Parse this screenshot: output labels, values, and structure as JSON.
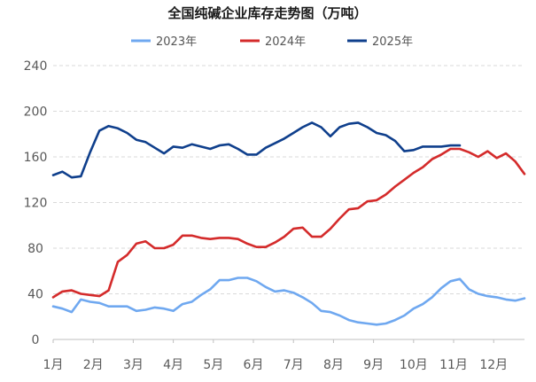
{
  "chart_data": {
    "type": "line",
    "title": "全国纯碱企业库存走势图（万吨）",
    "xlabel": "",
    "ylabel": "",
    "ylim": [
      0,
      240
    ],
    "yticks": [
      0,
      40,
      80,
      120,
      160,
      200,
      240
    ],
    "categories": [
      "1月",
      "2月",
      "3月",
      "4月",
      "5月",
      "6月",
      "7月",
      "8月",
      "9月",
      "10月",
      "11月",
      "12月"
    ],
    "grid": true,
    "legend_position": "top",
    "x_unit": "week",
    "series": [
      {
        "name": "2023年",
        "color": "#6fa8f0",
        "x": [
          0,
          1,
          2,
          3,
          4,
          5,
          6,
          7,
          8,
          9,
          10,
          11,
          12,
          13,
          14,
          15,
          16,
          17,
          18,
          19,
          20,
          21,
          22,
          23,
          24,
          25,
          26,
          27,
          28,
          29,
          30,
          31,
          32,
          33,
          34,
          35,
          36,
          37,
          38,
          39,
          40,
          41,
          42,
          43,
          44,
          45,
          46,
          47,
          48,
          49,
          50,
          51
        ],
        "values": [
          29,
          27,
          24,
          35,
          33,
          32,
          29,
          29,
          29,
          25,
          26,
          28,
          27,
          25,
          31,
          33,
          39,
          44,
          52,
          52,
          54,
          54,
          51,
          46,
          42,
          43,
          41,
          37,
          32,
          25,
          24,
          21,
          17,
          15,
          14,
          13,
          14,
          17,
          21,
          27,
          31,
          37,
          45,
          51,
          53,
          44,
          40,
          38,
          37,
          35,
          34,
          36
        ]
      },
      {
        "name": "2024年",
        "color": "#d42b2b",
        "x": [
          0,
          1,
          2,
          3,
          4,
          5,
          6,
          7,
          8,
          9,
          10,
          11,
          12,
          13,
          14,
          15,
          16,
          17,
          18,
          19,
          20,
          21,
          22,
          23,
          24,
          25,
          26,
          27,
          28,
          29,
          30,
          31,
          32,
          33,
          34,
          35,
          36,
          37,
          38,
          39,
          40,
          41,
          42,
          43,
          44,
          45,
          46,
          47,
          48,
          49,
          50,
          51
        ],
        "values": [
          37,
          42,
          43,
          40,
          39,
          38,
          43,
          68,
          74,
          84,
          86,
          80,
          80,
          83,
          91,
          91,
          89,
          88,
          89,
          89,
          88,
          84,
          81,
          81,
          85,
          90,
          97,
          98,
          90,
          90,
          97,
          106,
          114,
          115,
          121,
          122,
          127,
          134,
          140,
          146,
          151,
          158,
          162,
          167,
          167,
          164,
          160,
          165,
          159,
          163,
          156,
          145
        ]
      },
      {
        "name": "2025年",
        "color": "#0f3f8c",
        "x": [
          0,
          1,
          2,
          3,
          4,
          5,
          6,
          7,
          8,
          9,
          10,
          11,
          12,
          13,
          14,
          15,
          16,
          17,
          18,
          19,
          20,
          21,
          22,
          23,
          24,
          25,
          26,
          27,
          28,
          29,
          30,
          31,
          32,
          33,
          34,
          35,
          36,
          37,
          38,
          39,
          40,
          41,
          42,
          43,
          44
        ],
        "values": [
          144,
          147,
          142,
          143,
          164,
          183,
          187,
          185,
          181,
          175,
          173,
          168,
          163,
          169,
          168,
          171,
          169,
          167,
          170,
          171,
          167,
          162,
          162,
          168,
          172,
          176,
          181,
          186,
          190,
          186,
          178,
          186,
          189,
          190,
          186,
          181,
          179,
          174,
          165,
          166,
          169,
          169,
          169,
          170,
          170
        ]
      }
    ]
  }
}
